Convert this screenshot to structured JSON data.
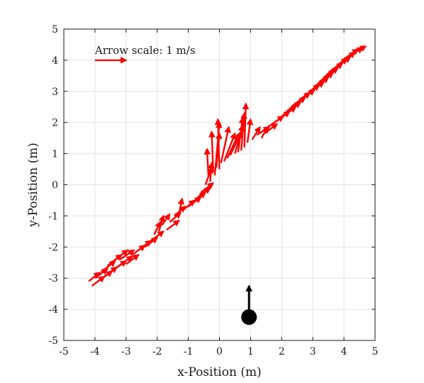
{
  "chart_data": {
    "type": "scatter",
    "title": "",
    "xlabel": "x-Position (m)",
    "ylabel": "y-Position (m)",
    "xlim": [
      -5,
      5
    ],
    "ylim": [
      -5,
      5
    ],
    "xticks": [
      "-5",
      "-4",
      "-3",
      "-2",
      "-1",
      "0",
      "1",
      "2",
      "3",
      "4",
      "5"
    ],
    "yticks": [
      "-5",
      "-4",
      "-3",
      "-2",
      "-1",
      "0",
      "1",
      "2",
      "3",
      "4",
      "5"
    ],
    "grid": true,
    "arrow_color": "#ff0000",
    "annotation": {
      "text": "Arrow scale: 1 m/s",
      "arrow_x": -4.0,
      "arrow_y": 4.0,
      "u": 1.0,
      "v": 0.0
    },
    "vectors": [
      {
        "x": -4.2,
        "y": -3.1,
        "u": 0.35,
        "v": 0.28
      },
      {
        "x": -4.1,
        "y": -3.25,
        "u": 0.4,
        "v": 0.3
      },
      {
        "x": -4.0,
        "y": -3.0,
        "u": 0.4,
        "v": 0.3
      },
      {
        "x": -3.9,
        "y": -3.1,
        "u": 0.45,
        "v": 0.32
      },
      {
        "x": -3.8,
        "y": -2.8,
        "u": 0.45,
        "v": 0.35
      },
      {
        "x": -3.7,
        "y": -2.95,
        "u": 0.4,
        "v": 0.3
      },
      {
        "x": -3.6,
        "y": -2.6,
        "u": 0.45,
        "v": 0.35
      },
      {
        "x": -3.5,
        "y": -2.8,
        "u": 0.5,
        "v": 0.35
      },
      {
        "x": -3.4,
        "y": -2.45,
        "u": 0.45,
        "v": 0.35
      },
      {
        "x": -3.3,
        "y": -2.65,
        "u": 0.5,
        "v": 0.35
      },
      {
        "x": -3.2,
        "y": -2.4,
        "u": 0.45,
        "v": 0.3
      },
      {
        "x": -3.0,
        "y": -2.55,
        "u": 0.4,
        "v": 0.3
      },
      {
        "x": -2.8,
        "y": -2.25,
        "u": 0.4,
        "v": 0.3
      },
      {
        "x": -2.6,
        "y": -2.1,
        "u": 0.4,
        "v": 0.3
      },
      {
        "x": -2.4,
        "y": -2.0,
        "u": 0.4,
        "v": 0.3
      },
      {
        "x": -2.2,
        "y": -1.8,
        "u": 0.4,
        "v": 0.3
      },
      {
        "x": -2.1,
        "y": -1.6,
        "u": 0.2,
        "v": 0.4
      },
      {
        "x": -1.95,
        "y": -1.5,
        "u": 0.15,
        "v": 0.5
      },
      {
        "x": -1.85,
        "y": -1.3,
        "u": 0.25,
        "v": 0.35
      },
      {
        "x": -1.7,
        "y": -1.45,
        "u": 0.4,
        "v": 0.3
      },
      {
        "x": -1.6,
        "y": -1.2,
        "u": 0.35,
        "v": 0.3
      },
      {
        "x": -1.45,
        "y": -1.0,
        "u": 0.35,
        "v": 0.3
      },
      {
        "x": -1.3,
        "y": -0.95,
        "u": 0.1,
        "v": 0.5
      },
      {
        "x": -1.15,
        "y": -0.8,
        "u": 0.35,
        "v": 0.3
      },
      {
        "x": -1.0,
        "y": -0.7,
        "u": 0.4,
        "v": 0.3
      },
      {
        "x": -0.85,
        "y": -0.55,
        "u": 0.4,
        "v": 0.3
      },
      {
        "x": -0.7,
        "y": -0.4,
        "u": 0.4,
        "v": 0.3
      },
      {
        "x": -0.6,
        "y": -0.25,
        "u": 0.4,
        "v": 0.3
      },
      {
        "x": -0.45,
        "y": 0.0,
        "u": 0.2,
        "v": 0.55
      },
      {
        "x": -0.35,
        "y": 0.25,
        "u": -0.05,
        "v": 0.9
      },
      {
        "x": -0.3,
        "y": 0.1,
        "u": 0.05,
        "v": 0.6
      },
      {
        "x": -0.2,
        "y": 0.4,
        "u": -0.05,
        "v": 1.3
      },
      {
        "x": -0.15,
        "y": 0.3,
        "u": 0.15,
        "v": 1.7
      },
      {
        "x": -0.1,
        "y": 0.55,
        "u": 0.1,
        "v": 1.1
      },
      {
        "x": 0.0,
        "y": 0.5,
        "u": -0.05,
        "v": 1.6
      },
      {
        "x": 0.05,
        "y": 0.7,
        "u": 0.25,
        "v": 1.15
      },
      {
        "x": 0.15,
        "y": 0.75,
        "u": 0.35,
        "v": 0.9
      },
      {
        "x": 0.25,
        "y": 0.85,
        "u": 0.35,
        "v": 0.75
      },
      {
        "x": 0.35,
        "y": 0.95,
        "u": 0.35,
        "v": 0.75
      },
      {
        "x": 0.5,
        "y": 1.0,
        "u": 0.25,
        "v": 0.9
      },
      {
        "x": 0.6,
        "y": 1.05,
        "u": 0.15,
        "v": 1.1
      },
      {
        "x": 0.7,
        "y": 1.1,
        "u": 0.1,
        "v": 1.2
      },
      {
        "x": 0.8,
        "y": 1.2,
        "u": 0.05,
        "v": 1.4
      },
      {
        "x": 0.9,
        "y": 1.35,
        "u": 0.1,
        "v": 0.75
      },
      {
        "x": 1.05,
        "y": 1.45,
        "u": 0.25,
        "v": 0.4
      },
      {
        "x": 1.2,
        "y": 1.6,
        "u": 0.4,
        "v": 0.25
      },
      {
        "x": 1.35,
        "y": 1.5,
        "u": 0.2,
        "v": 0.35
      },
      {
        "x": 1.45,
        "y": 1.65,
        "u": 0.4,
        "v": 0.3
      },
      {
        "x": 1.55,
        "y": 1.85,
        "u": 0.5,
        "v": 0.35
      },
      {
        "x": 1.7,
        "y": 1.95,
        "u": 0.55,
        "v": 0.4
      },
      {
        "x": 1.85,
        "y": 2.05,
        "u": 0.6,
        "v": 0.45
      },
      {
        "x": 2.0,
        "y": 2.2,
        "u": 0.6,
        "v": 0.45
      },
      {
        "x": 2.15,
        "y": 2.35,
        "u": 0.6,
        "v": 0.45
      },
      {
        "x": 2.3,
        "y": 2.5,
        "u": 0.6,
        "v": 0.45
      },
      {
        "x": 2.45,
        "y": 2.6,
        "u": 0.6,
        "v": 0.45
      },
      {
        "x": 2.6,
        "y": 2.75,
        "u": 0.6,
        "v": 0.45
      },
      {
        "x": 2.75,
        "y": 2.85,
        "u": 0.6,
        "v": 0.45
      },
      {
        "x": 2.9,
        "y": 3.0,
        "u": 0.6,
        "v": 0.45
      },
      {
        "x": 3.05,
        "y": 3.15,
        "u": 0.6,
        "v": 0.45
      },
      {
        "x": 3.2,
        "y": 3.3,
        "u": 0.6,
        "v": 0.45
      },
      {
        "x": 3.35,
        "y": 3.45,
        "u": 0.6,
        "v": 0.45
      },
      {
        "x": 3.5,
        "y": 3.6,
        "u": 0.6,
        "v": 0.45
      },
      {
        "x": 3.65,
        "y": 3.7,
        "u": 0.55,
        "v": 0.4
      },
      {
        "x": 3.8,
        "y": 3.85,
        "u": 0.55,
        "v": 0.4
      },
      {
        "x": 3.95,
        "y": 4.0,
        "u": 0.5,
        "v": 0.35
      },
      {
        "x": 4.1,
        "y": 4.1,
        "u": 0.5,
        "v": 0.3
      },
      {
        "x": 4.25,
        "y": 4.2,
        "u": 0.45,
        "v": 0.25
      }
    ],
    "body": {
      "x": 0.95,
      "y": -4.25,
      "heading_u": 0.0,
      "heading_v": 1.0,
      "color": "#000000"
    }
  }
}
